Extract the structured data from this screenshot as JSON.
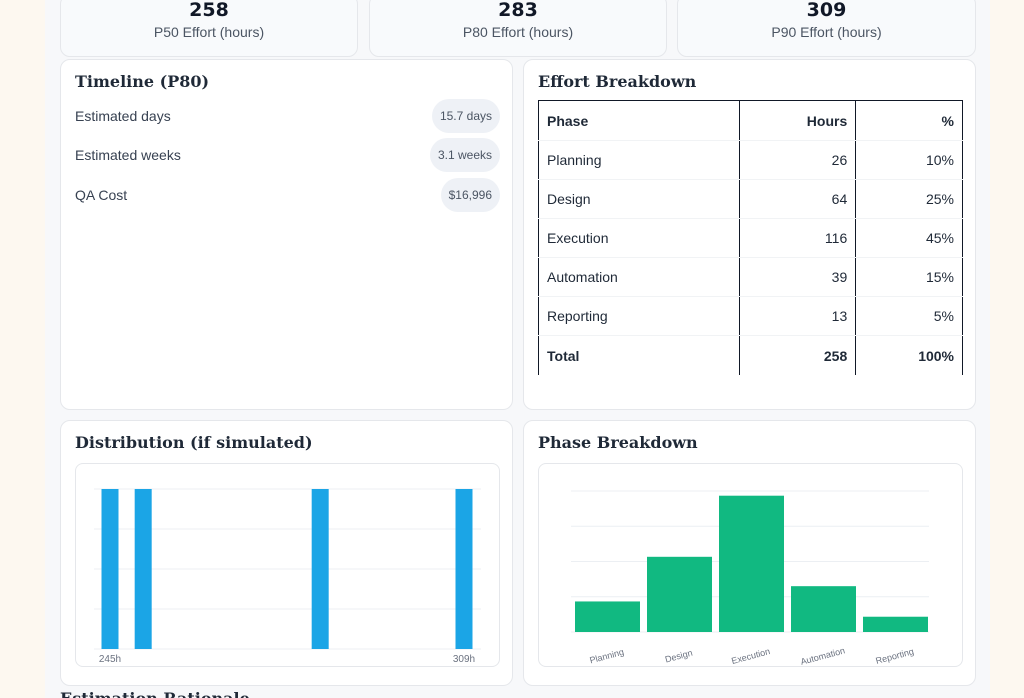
{
  "stats": [
    {
      "value": "258",
      "label": "P50 Effort (hours)"
    },
    {
      "value": "283",
      "label": "P80 Effort (hours)"
    },
    {
      "value": "309",
      "label": "P90 Effort (hours)"
    }
  ],
  "timeline": {
    "title": "Timeline (P80)",
    "rows": [
      {
        "label": "Estimated days",
        "value": "15.7 days"
      },
      {
        "label": "Estimated weeks",
        "value": "3.1 weeks"
      },
      {
        "label": "QA Cost",
        "value": "$16,996"
      }
    ]
  },
  "effort_breakdown": {
    "title": "Effort Breakdown",
    "headers": [
      "Phase",
      "Hours",
      "%"
    ],
    "rows": [
      {
        "phase": "Planning",
        "hours": "26",
        "pct": "10%"
      },
      {
        "phase": "Design",
        "hours": "64",
        "pct": "25%"
      },
      {
        "phase": "Execution",
        "hours": "116",
        "pct": "45%"
      },
      {
        "phase": "Automation",
        "hours": "39",
        "pct": "15%"
      },
      {
        "phase": "Reporting",
        "hours": "13",
        "pct": "5%"
      }
    ],
    "total": {
      "phase": "Total",
      "hours": "258",
      "pct": "100%"
    }
  },
  "distribution": {
    "title": "Distribution (if simulated)"
  },
  "phase_breakdown": {
    "title": "Phase Breakdown"
  },
  "next_section": {
    "title": "Estimation Rationale"
  },
  "colors": {
    "distribution_bar": "#1ba5e6",
    "phase_bar": "#11b981",
    "grid": "#eceff3"
  },
  "chart_data": [
    {
      "type": "bar",
      "title": "Distribution (if simulated)",
      "x": [
        245,
        251,
        283,
        309
      ],
      "values": [
        1,
        1,
        1,
        1
      ],
      "tick_labels": [
        "245h",
        "309h"
      ],
      "xlim": [
        245,
        309
      ],
      "ylim": [
        0,
        1
      ],
      "grid": true
    },
    {
      "type": "bar",
      "title": "Phase Breakdown",
      "categories": [
        "Planning",
        "Design",
        "Execution",
        "Automation",
        "Reporting"
      ],
      "values": [
        26,
        64,
        116,
        39,
        13
      ],
      "ylim": [
        0,
        120
      ],
      "grid": true
    }
  ]
}
